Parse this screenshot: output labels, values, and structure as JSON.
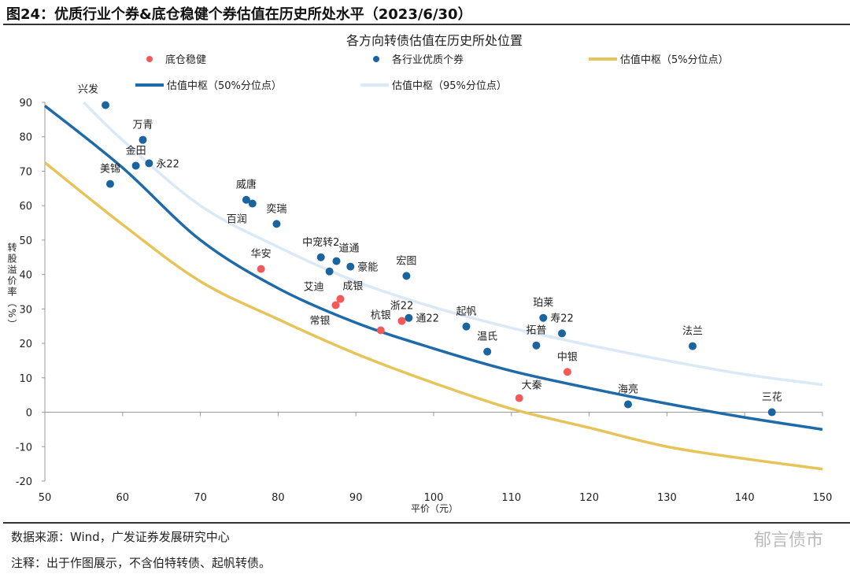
{
  "figure_title": "图24：优质行业个券&底仓稳健个券估值在历史所处水平（2023/6/30）",
  "source": "数据来源：Wind，广发证券发展研究中心",
  "note": "注释：出于作图展示，不含伯特转债、起帆转债。",
  "watermark": "郁言债市",
  "chart_data": {
    "type": "scatter",
    "title": "各方向转债估值在历史所处位置",
    "xlabel": "平价（元）",
    "ylabel": "转股溢价率（%）",
    "xlim": [
      50,
      150
    ],
    "ylim": [
      -20,
      90
    ],
    "xticks": [
      50,
      60,
      70,
      80,
      90,
      100,
      110,
      120,
      130,
      140,
      150
    ],
    "yticks": [
      -20,
      -10,
      0,
      10,
      20,
      30,
      40,
      50,
      60,
      70,
      80,
      90
    ],
    "grid": false,
    "legend_placement": "top",
    "colors": {
      "red": "#f25a5a",
      "blue": "#1a64a0",
      "p5": "#e6c45a",
      "p50": "#1f6aa8",
      "p95": "#dbe8f5"
    },
    "series": [
      {
        "name": "底仓稳健",
        "kind": "scatter",
        "color_key": "red",
        "points": [
          {
            "label": "华安",
            "x": 77.8,
            "y": 41.6,
            "pos": "above"
          },
          {
            "label": "成银",
            "x": 88.0,
            "y": 32.9,
            "pos": "above-right"
          },
          {
            "label": "常银",
            "x": 87.4,
            "y": 31.1,
            "pos": "below-left"
          },
          {
            "label": "杭银",
            "x": 93.2,
            "y": 23.8,
            "pos": "above"
          },
          {
            "label": "浙22",
            "x": 95.9,
            "y": 26.5,
            "pos": "above"
          },
          {
            "label": "中银",
            "x": 117.2,
            "y": 11.7,
            "pos": "above"
          },
          {
            "label": "大秦",
            "x": 111.0,
            "y": 4.1,
            "pos": "above-right"
          }
        ]
      },
      {
        "name": "各行业优质个券",
        "kind": "scatter",
        "color_key": "blue",
        "points": [
          {
            "label": "兴发",
            "x": 57.8,
            "y": 89.2,
            "pos": "above-left"
          },
          {
            "label": "万青",
            "x": 62.6,
            "y": 79.1,
            "pos": "above"
          },
          {
            "label": "金田",
            "x": 61.7,
            "y": 71.6,
            "pos": "above"
          },
          {
            "label": "永22",
            "x": 63.4,
            "y": 72.3,
            "pos": "right"
          },
          {
            "label": "美锦",
            "x": 58.4,
            "y": 66.3,
            "pos": "above"
          },
          {
            "label": "威唐",
            "x": 75.9,
            "y": 61.7,
            "pos": "above"
          },
          {
            "label": "百润",
            "x": 76.7,
            "y": 60.6,
            "pos": "below-left"
          },
          {
            "label": "奕瑞",
            "x": 79.8,
            "y": 54.7,
            "pos": "above"
          },
          {
            "label": "中宠转2",
            "x": 85.5,
            "y": 45.0,
            "pos": "above"
          },
          {
            "label": "道通",
            "x": 87.5,
            "y": 43.9,
            "pos": "above-right"
          },
          {
            "label": "豪能",
            "x": 89.3,
            "y": 42.3,
            "pos": "right"
          },
          {
            "label": "艾迪",
            "x": 86.6,
            "y": 40.9,
            "pos": "below-left"
          },
          {
            "label": "宏图",
            "x": 96.5,
            "y": 39.6,
            "pos": "above"
          },
          {
            "label": "通22",
            "x": 96.8,
            "y": 27.4,
            "pos": "right"
          },
          {
            "label": "起帆",
            "x": 104.2,
            "y": 24.9,
            "pos": "above"
          },
          {
            "label": "温氏",
            "x": 106.9,
            "y": 17.6,
            "pos": "above"
          },
          {
            "label": "拓普",
            "x": 113.2,
            "y": 19.4,
            "pos": "above"
          },
          {
            "label": "珀莱",
            "x": 114.1,
            "y": 27.4,
            "pos": "above"
          },
          {
            "label": "寿22",
            "x": 116.5,
            "y": 22.9,
            "pos": "above"
          },
          {
            "label": "法兰",
            "x": 133.3,
            "y": 19.2,
            "pos": "above"
          },
          {
            "label": "海亮",
            "x": 125.0,
            "y": 2.3,
            "pos": "above"
          },
          {
            "label": "三花",
            "x": 143.5,
            "y": 0.0,
            "pos": "above"
          }
        ]
      },
      {
        "name": "估值中枢（5%分位点）",
        "kind": "line",
        "color_key": "p5",
        "x": [
          50,
          60,
          70,
          80,
          90,
          100,
          110,
          120,
          130,
          140,
          150
        ],
        "y": [
          72.5,
          54.5,
          38,
          27,
          17,
          8.5,
          1,
          -4.5,
          -10,
          -13.5,
          -16.5
        ]
      },
      {
        "name": "估值中枢（50%分位点）",
        "kind": "line",
        "color_key": "p50",
        "x": [
          50,
          60,
          70,
          80,
          90,
          100,
          110,
          120,
          130,
          140,
          150
        ],
        "y": [
          89,
          71,
          50,
          36,
          26,
          18.5,
          12,
          7,
          2.5,
          -1.5,
          -5
        ]
      },
      {
        "name": "估值中枢（95%分位点）",
        "kind": "line",
        "color_key": "p95",
        "x": [
          55,
          60,
          70,
          80,
          90,
          100,
          110,
          120,
          130,
          140,
          150
        ],
        "y": [
          90,
          79,
          60,
          48,
          38,
          30.5,
          24.5,
          19.5,
          15,
          11,
          8
        ]
      }
    ]
  }
}
